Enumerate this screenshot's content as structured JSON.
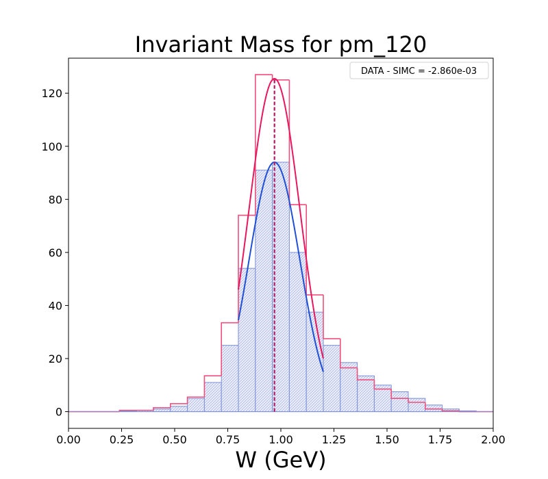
{
  "chart_data": {
    "type": "histogram",
    "title": "Invariant Mass for pm_120",
    "xlabel": "W (GeV)",
    "ylabel": "",
    "xlim": [
      0.0,
      2.0
    ],
    "ylim": [
      -6.3,
      133.2
    ],
    "xticks": [
      "0.00",
      "0.25",
      "0.50",
      "0.75",
      "1.00",
      "1.25",
      "1.50",
      "1.75",
      "2.00"
    ],
    "yticks": [
      "0",
      "20",
      "40",
      "60",
      "80",
      "100",
      "120"
    ],
    "legend": {
      "text": "DATA - SIMC = -2.860e-03",
      "position": "top-right"
    },
    "bin_width": 0.08,
    "bin_edges": [
      0.0,
      0.08,
      0.16,
      0.24,
      0.32,
      0.4,
      0.48,
      0.56,
      0.64,
      0.72,
      0.8,
      0.88,
      0.96,
      1.04,
      1.12,
      1.2,
      1.28,
      1.36,
      1.44,
      1.52,
      1.6,
      1.68,
      1.76,
      1.84,
      1.92,
      2.0
    ],
    "series": [
      {
        "style": "filled-hatched",
        "color": "#7b8fd6",
        "values": [
          0,
          0,
          0,
          0.2,
          0.5,
          1,
          2,
          5,
          11,
          25,
          54,
          91,
          94,
          60,
          37.5,
          25,
          18.5,
          13.5,
          10,
          7.5,
          5,
          2.5,
          1,
          0.3,
          0
        ]
      },
      {
        "style": "step",
        "color": "#ef4f7c",
        "values": [
          0,
          0,
          0,
          0.5,
          0.5,
          1.5,
          3,
          5.5,
          13.5,
          33.5,
          74,
          127,
          125,
          78,
          44,
          27.5,
          16.5,
          12,
          8.5,
          5,
          3.5,
          1,
          0.3,
          0,
          0
        ]
      }
    ],
    "fits": [
      {
        "type": "gaussian",
        "color": "#1f4fd6",
        "amplitude": 94,
        "mean": 0.97,
        "sigma": 0.12,
        "x_range": [
          0.8,
          1.2
        ]
      },
      {
        "type": "gaussian",
        "color": "#e8175d",
        "amplitude": 125.5,
        "mean": 0.97,
        "sigma": 0.12,
        "x_range": [
          0.8,
          1.2
        ]
      }
    ],
    "vlines": [
      {
        "x": 0.97,
        "color": "#1f4fd6",
        "style": "dashed"
      },
      {
        "x": 0.97,
        "color": "#c2185b",
        "style": "dashed"
      }
    ]
  }
}
